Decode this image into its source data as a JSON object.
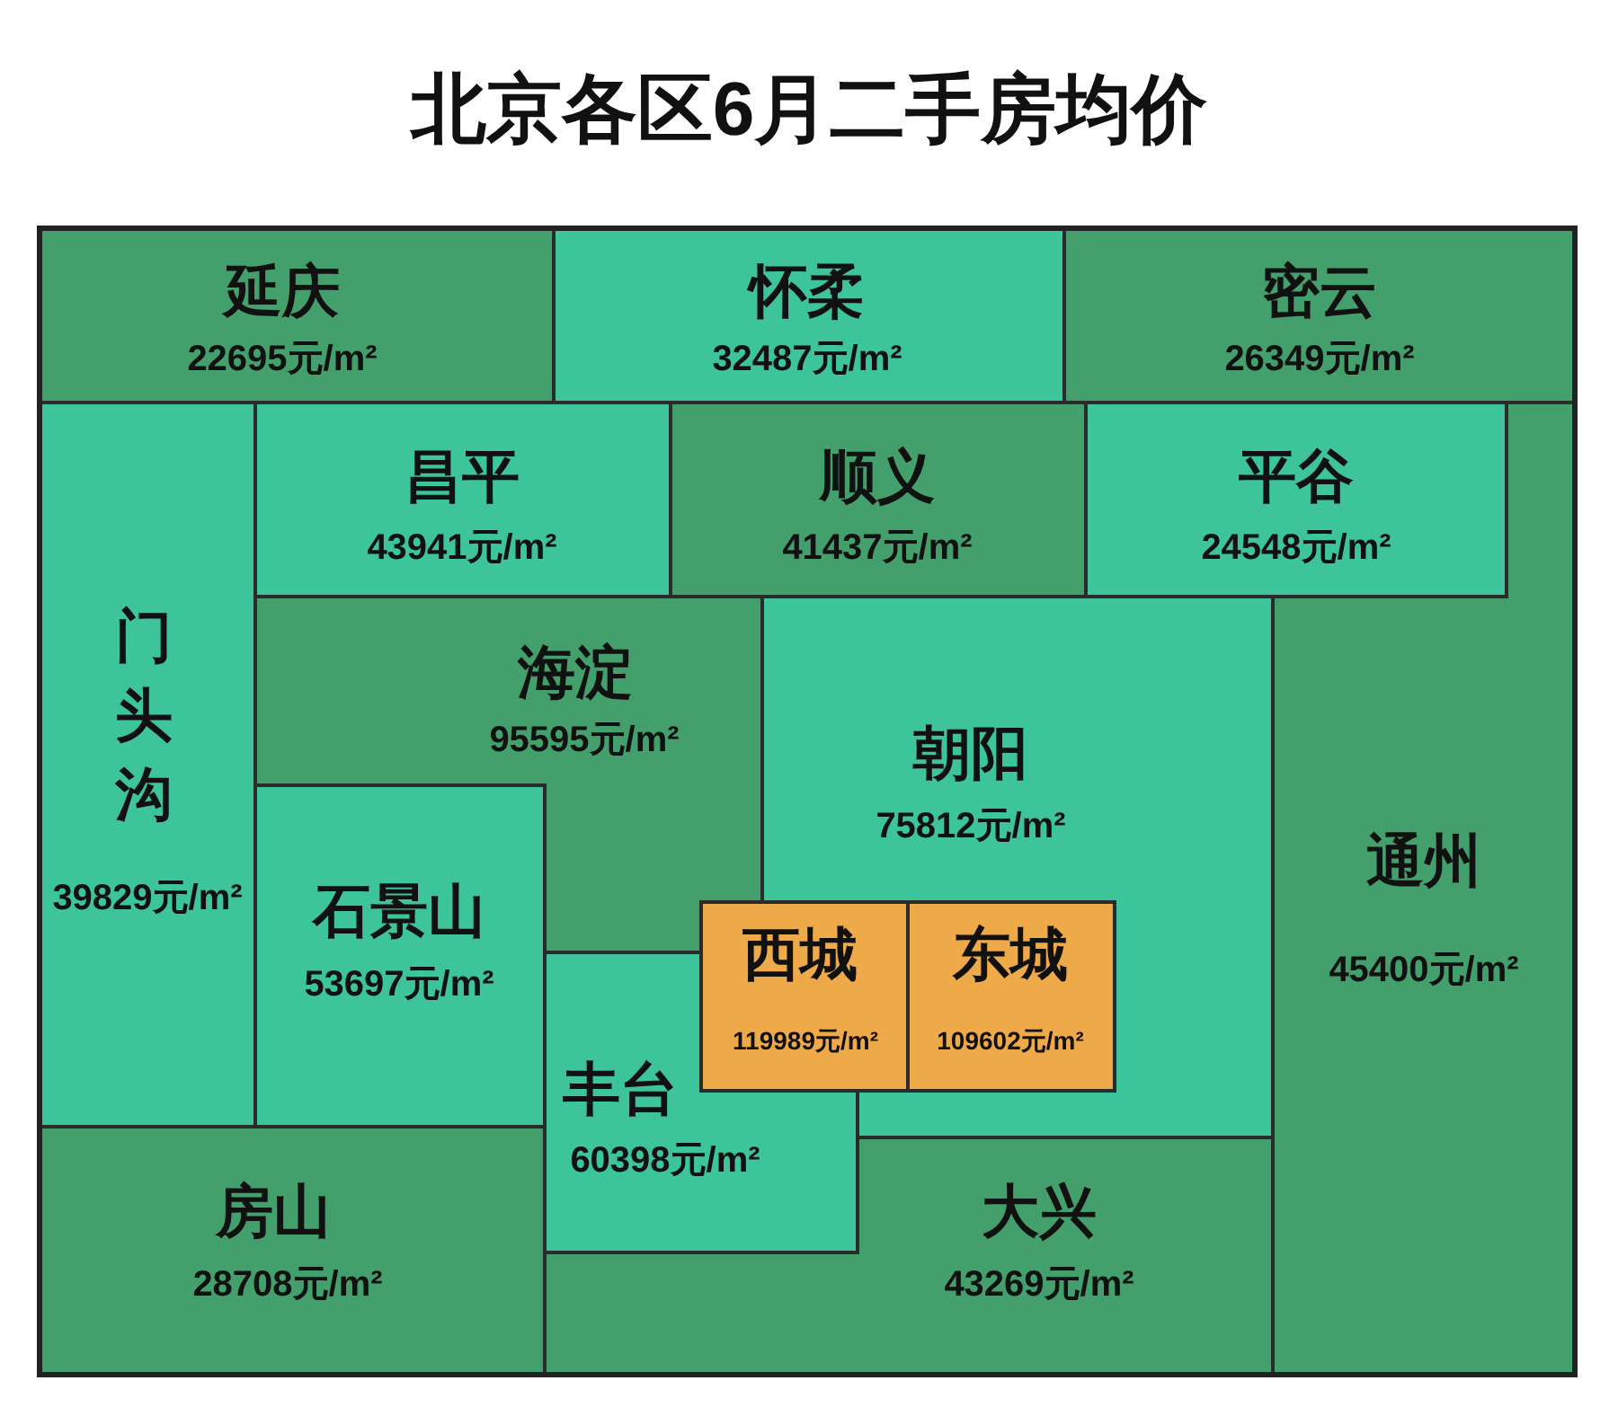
{
  "chart_data": {
    "type": "other",
    "title": "北京各区6月二手房均价",
    "categories": [
      "延庆",
      "怀柔",
      "密云",
      "门头沟",
      "通州",
      "昌平",
      "顺义",
      "平谷",
      "海淀",
      "朝阳",
      "大兴",
      "房山",
      "石景山",
      "丰台",
      "西城",
      "东城"
    ],
    "values": [
      22695,
      32487,
      26349,
      39829,
      45400,
      43941,
      41437,
      24548,
      95595,
      75812,
      43269,
      28708,
      53697,
      60398,
      119989,
      109602
    ],
    "value_labels": [
      "22695元/m²",
      "32487元/m²",
      "26349元/m²",
      "39829元/m²",
      "45400元/m²",
      "43941元/m²",
      "41437元/m²",
      "24548元/m²",
      "95595元/m²",
      "75812元/m²",
      "43269元/m²",
      "28708元/m²",
      "53697元/m²",
      "60398元/m²",
      "119989元/m²",
      "109602元/m²"
    ],
    "colors": [
      "#43a06c",
      "#3dc49a",
      "#43a06c",
      "#3dc49a",
      "#43a06c",
      "#3dc49a",
      "#43a06c",
      "#3dc49a",
      "#43a06c",
      "#3dc49a",
      "#43a06c",
      "#43a06c",
      "#3dc49a",
      "#3dc49a",
      "#eeaa48",
      "#eeaa48"
    ]
  }
}
